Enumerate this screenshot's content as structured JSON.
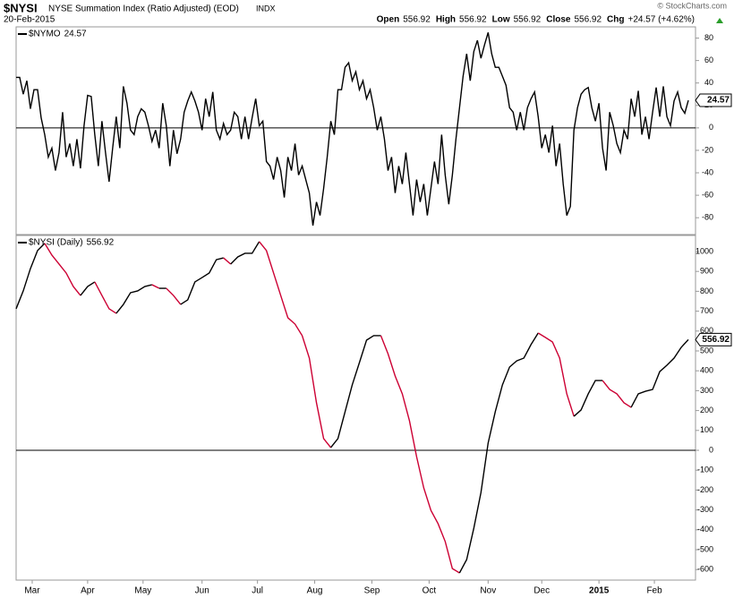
{
  "header": {
    "symbol": "$NYSI",
    "name": "NYSE Summation Index (Ratio Adjusted) (EOD)",
    "exchange": "INDX",
    "date": "20-Feb-2015",
    "quote": [
      {
        "label": "Open",
        "value": "556.92"
      },
      {
        "label": "High",
        "value": "556.92"
      },
      {
        "label": "Low",
        "value": "556.92"
      },
      {
        "label": "Close",
        "value": "556.92"
      },
      {
        "label": "Chg",
        "value": "+24.57 (+4.62%)"
      }
    ],
    "credit": "© StockCharts.com"
  },
  "chart_data": [
    {
      "type": "line",
      "hline": 0,
      "xlim": [
        0,
        380
      ],
      "ylim": [
        -95,
        90
      ],
      "yticks": [
        -80,
        -60,
        -40,
        -20,
        0,
        20,
        40,
        60,
        80
      ],
      "x": [
        0,
        2,
        4,
        6,
        8,
        10,
        12,
        14,
        16,
        18,
        20,
        22,
        24,
        26,
        28,
        30,
        32,
        34,
        36,
        38,
        40,
        42,
        44,
        46,
        48,
        50,
        52,
        54,
        56,
        58,
        60,
        62,
        64,
        66,
        68,
        70,
        72,
        74,
        76,
        78,
        80,
        82,
        84,
        86,
        88,
        90,
        92,
        94,
        96,
        98,
        100,
        102,
        104,
        106,
        108,
        110,
        112,
        114,
        116,
        118,
        120,
        122,
        124,
        126,
        128,
        130,
        132,
        134,
        136,
        138,
        140,
        142,
        144,
        146,
        148,
        150,
        152,
        154,
        156,
        158,
        160,
        162,
        164,
        166,
        168,
        170,
        172,
        174,
        176,
        178,
        180,
        182,
        184,
        186,
        188,
        190,
        192,
        194,
        196,
        198,
        200,
        202,
        204,
        206,
        208,
        210,
        212,
        214,
        216,
        218,
        220,
        222,
        224,
        226,
        228,
        230,
        232,
        234,
        236,
        238,
        240,
        242,
        244,
        246,
        248,
        250,
        252,
        254,
        256,
        258,
        260,
        262,
        264,
        266,
        268,
        270,
        272,
        274,
        276,
        278,
        280,
        282,
        284,
        286,
        288,
        290,
        292,
        294,
        296,
        298,
        300,
        302,
        304,
        306,
        308,
        310,
        312,
        314,
        316,
        318,
        320,
        322,
        324,
        326,
        328,
        330,
        332,
        334,
        336,
        338,
        340,
        342,
        344,
        346,
        348,
        350,
        352,
        354,
        356,
        358,
        360,
        362,
        364,
        366,
        368,
        370,
        372,
        374,
        376
      ],
      "series": [
        {
          "name": "$NYMO",
          "color": "#000000",
          "values": [
            45,
            45,
            30,
            42,
            17,
            34,
            34,
            9,
            -6,
            -26,
            -18,
            -38,
            -22,
            14,
            -26,
            -14,
            -34,
            -10,
            -36,
            2,
            29,
            28,
            -6,
            -34,
            6,
            -22,
            -48,
            -18,
            10,
            -18,
            37,
            22,
            -2,
            -6,
            10,
            17,
            14,
            2,
            -12,
            -2,
            -18,
            22,
            2,
            -34,
            -2,
            -23,
            -10,
            14,
            24,
            32,
            24,
            14,
            -2,
            26,
            10,
            32,
            -2,
            -10,
            4,
            -6,
            -2,
            14,
            10,
            -10,
            10,
            -10,
            9,
            26,
            2,
            6,
            -30,
            -34,
            -46,
            -26,
            -38,
            -62,
            -26,
            -38,
            -14,
            -42,
            -34,
            -46,
            -58,
            -87,
            -66,
            -78,
            -54,
            -26,
            6,
            -6,
            34,
            34,
            54,
            58,
            42,
            50,
            34,
            42,
            26,
            34,
            18,
            -2,
            10,
            -10,
            -38,
            -26,
            -58,
            -34,
            -50,
            -22,
            -50,
            -78,
            -46,
            -66,
            -50,
            -78,
            -54,
            -30,
            -50,
            -6,
            -42,
            -68,
            -42,
            -10,
            18,
            46,
            66,
            42,
            68,
            78,
            62,
            74,
            85,
            66,
            54,
            54,
            46,
            38,
            18,
            14,
            -2,
            14,
            -2,
            18,
            26,
            32,
            10,
            -18,
            -6,
            -22,
            2,
            -34,
            -14,
            -50,
            -78,
            -70,
            -2,
            18,
            30,
            34,
            36,
            18,
            6,
            22,
            -18,
            -38,
            14,
            2,
            -14,
            -22,
            -2,
            -10,
            26,
            10,
            33,
            -6,
            10,
            -10,
            14,
            36,
            10,
            37,
            10,
            2,
            24,
            32,
            18,
            13,
            24.57
          ]
        }
      ]
    },
    {
      "type": "line",
      "hline": 0,
      "xlim": [
        0,
        380
      ],
      "ylim": [
        -653,
        1081
      ],
      "yticks": [
        -600,
        -500,
        -400,
        -300,
        -200,
        -100,
        0,
        100,
        200,
        300,
        400,
        500,
        600,
        700,
        800,
        900,
        1000
      ],
      "up_color": "#000000",
      "down_color": "#cc0033",
      "xticks": [
        {
          "value": 9,
          "label": "Mar"
        },
        {
          "value": 40,
          "label": "Apr"
        },
        {
          "value": 71,
          "label": "May"
        },
        {
          "value": 104,
          "label": "Jun"
        },
        {
          "value": 135,
          "label": "Jul"
        },
        {
          "value": 167,
          "label": "Aug"
        },
        {
          "value": 199,
          "label": "Sep"
        },
        {
          "value": 231,
          "label": "Oct"
        },
        {
          "value": 264,
          "label": "Nov"
        },
        {
          "value": 294,
          "label": "Dec"
        },
        {
          "value": 326,
          "label": "2015"
        },
        {
          "value": 357,
          "label": "Feb"
        }
      ],
      "x": [
        0,
        4,
        8,
        12,
        16,
        20,
        24,
        28,
        32,
        36,
        40,
        44,
        48,
        52,
        56,
        60,
        64,
        68,
        72,
        76,
        80,
        84,
        88,
        92,
        96,
        100,
        104,
        108,
        112,
        116,
        120,
        124,
        128,
        132,
        136,
        140,
        144,
        148,
        152,
        156,
        160,
        164,
        168,
        172,
        176,
        180,
        184,
        188,
        192,
        196,
        200,
        204,
        208,
        212,
        216,
        220,
        224,
        228,
        232,
        236,
        240,
        244,
        248,
        252,
        256,
        260,
        264,
        268,
        272,
        276,
        280,
        284,
        288,
        292,
        296,
        300,
        304,
        308,
        312,
        316,
        320,
        324,
        328,
        332,
        336,
        340,
        344,
        348,
        352,
        356,
        360,
        364,
        368,
        372,
        376
      ],
      "series": [
        {
          "name": "$NYSI (Daily)",
          "values": [
            712,
            802,
            914,
            1005,
            1041,
            982,
            937,
            892,
            824,
            779,
            824,
            847,
            779,
            712,
            689,
            734,
            793,
            802,
            824,
            833,
            815,
            815,
            779,
            734,
            757,
            847,
            869,
            892,
            959,
            968,
            937,
            973,
            991,
            991,
            1050,
            1005,
            892,
            779,
            667,
            635,
            577,
            464,
            239,
            59,
            14,
            59,
            194,
            329,
            441,
            554,
            577,
            577,
            486,
            374,
            284,
            149,
            -32,
            -189,
            -302,
            -369,
            -459,
            -595,
            -617,
            -550,
            -392,
            -212,
            36,
            194,
            329,
            419,
            450,
            464,
            532,
            590,
            568,
            545,
            464,
            284,
            171,
            203,
            284,
            351,
            351,
            306,
            284,
            239,
            216,
            284,
            297,
            306,
            396,
            428,
            464,
            518,
            556.92
          ]
        }
      ]
    }
  ]
}
